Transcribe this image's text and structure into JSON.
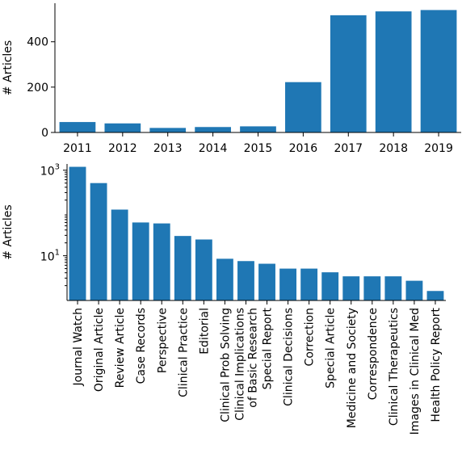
{
  "chart_data": [
    {
      "type": "bar",
      "title": "",
      "xlabel": "",
      "ylabel": "# Articles",
      "ylim": [
        0,
        570
      ],
      "yscale": "linear",
      "yticks": [
        0,
        200,
        400
      ],
      "categories": [
        "2011",
        "2012",
        "2013",
        "2014",
        "2015",
        "2016",
        "2017",
        "2018",
        "2019"
      ],
      "values": [
        46,
        40,
        20,
        24,
        27,
        222,
        517,
        534,
        540
      ],
      "color": "#1f77b4"
    },
    {
      "type": "bar",
      "title": "",
      "xlabel": "",
      "ylabel": "# Articles",
      "ylim": [
        0.9,
        1400
      ],
      "yscale": "log",
      "yticks": [
        {
          "value": 10,
          "base": "10",
          "exp": "1"
        },
        {
          "value": 1000,
          "base": "10",
          "exp": "3"
        }
      ],
      "categories": [
        [
          "Journal Watch"
        ],
        [
          "Original Article"
        ],
        [
          "Review Article"
        ],
        [
          "Case Records"
        ],
        [
          "Perspective"
        ],
        [
          "Clinical Practice"
        ],
        [
          "Editorial"
        ],
        [
          "Clinical Prob Solving"
        ],
        [
          "Clinical Implications",
          "of Basic Research"
        ],
        [
          "Special Report"
        ],
        [
          "Clinical Decisions"
        ],
        [
          "Correction"
        ],
        [
          "Special Article"
        ],
        [
          "Medicine and Society"
        ],
        [
          "Correspondence"
        ],
        [
          "Clinical Therapeutics"
        ],
        [
          "Images in Clinical Med"
        ],
        [
          "Health Policy Report"
        ]
      ],
      "values": [
        1200,
        500,
        120,
        60,
        57,
        29,
        24,
        8.5,
        7.5,
        6.5,
        5.0,
        5.0,
        4.1,
        3.3,
        3.3,
        3.3,
        2.6,
        1.5
      ],
      "color": "#1f77b4"
    }
  ]
}
